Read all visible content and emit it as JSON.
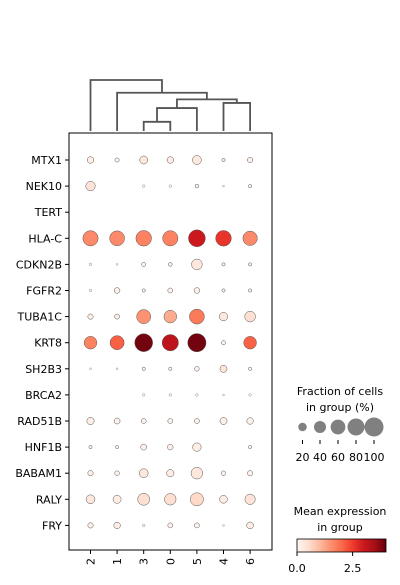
{
  "chart_data": {
    "type": "dotplot",
    "genes": [
      "MTX1",
      "NEK10",
      "TERT",
      "HLA-C",
      "CDKN2B",
      "FGFR2",
      "TUBA1C",
      "KRT8",
      "SH2B3",
      "BRCA2",
      "RAD51B",
      "HNF1B",
      "BABAM1",
      "RALY",
      "FRY"
    ],
    "groups": [
      "2",
      "1",
      "3",
      "0",
      "5",
      "4",
      "6"
    ],
    "mean_expression": [
      [
        0.2,
        0.1,
        0.3,
        0.2,
        0.3,
        0.05,
        0.1
      ],
      [
        0.4,
        0.0,
        0.05,
        0.05,
        0.05,
        0.0,
        0.05
      ],
      [
        0.0,
        0.0,
        0.0,
        0.0,
        0.0,
        0.0,
        0.0
      ],
      [
        1.6,
        1.6,
        1.7,
        1.7,
        3.0,
        2.6,
        1.6
      ],
      [
        0.05,
        0.0,
        0.05,
        0.1,
        0.3,
        0.05,
        0.05
      ],
      [
        0.05,
        0.15,
        0.05,
        0.1,
        0.15,
        0.05,
        0.05
      ],
      [
        0.2,
        0.15,
        1.5,
        1.2,
        1.8,
        0.3,
        0.5
      ],
      [
        1.7,
        2.1,
        3.9,
        3.2,
        3.9,
        0.05,
        2.1
      ],
      [
        0.05,
        0.05,
        0.05,
        0.05,
        0.1,
        0.4,
        0.05
      ],
      [
        0.0,
        0.0,
        0.05,
        0.05,
        0.05,
        0.0,
        0.05
      ],
      [
        0.15,
        0.1,
        0.1,
        0.1,
        0.1,
        0.1,
        0.1
      ],
      [
        0.05,
        0.05,
        0.1,
        0.15,
        0.2,
        0.0,
        0.05
      ],
      [
        0.15,
        0.1,
        0.3,
        0.2,
        0.3,
        0.1,
        0.1
      ],
      [
        0.3,
        0.2,
        0.5,
        0.5,
        0.6,
        0.2,
        0.4
      ],
      [
        0.15,
        0.2,
        0.05,
        0.1,
        0.05,
        0.0,
        0.2
      ]
    ],
    "fraction_pct": [
      [
        12,
        5,
        18,
        12,
        22,
        3,
        8
      ],
      [
        25,
        0,
        2,
        2,
        4,
        1,
        3
      ],
      [
        0,
        0,
        0,
        0,
        0,
        0,
        0
      ],
      [
        65,
        62,
        68,
        65,
        78,
        68,
        58
      ],
      [
        2,
        1,
        5,
        4,
        32,
        3,
        3
      ],
      [
        2,
        9,
        3,
        7,
        9,
        3,
        3
      ],
      [
        8,
        7,
        55,
        45,
        62,
        20,
        32
      ],
      [
        45,
        55,
        88,
        74,
        92,
        5,
        45
      ],
      [
        1,
        1,
        3,
        3,
        6,
        14,
        3
      ],
      [
        0,
        0,
        2,
        2,
        2,
        1,
        2
      ],
      [
        15,
        10,
        7,
        7,
        7,
        14,
        12
      ],
      [
        3,
        3,
        10,
        9,
        20,
        0,
        3
      ],
      [
        8,
        6,
        22,
        15,
        38,
        6,
        8
      ],
      [
        22,
        18,
        40,
        37,
        48,
        17,
        30
      ],
      [
        8,
        12,
        2,
        7,
        7,
        1,
        13
      ]
    ],
    "dendrogram": [
      {
        "a": "3",
        "b": "0",
        "height": 0.18
      },
      {
        "a": "3+0",
        "b": "5",
        "height": 0.45
      },
      {
        "a": "4",
        "b": "6",
        "height": 0.55
      },
      {
        "a": "3+0+5",
        "b": "4+6",
        "height": 0.62
      },
      {
        "a": "1",
        "b": "3+0+5+4+6",
        "height": 0.75
      },
      {
        "a": "2",
        "b": "1+3+0+5+4+6",
        "height": 1.0
      }
    ],
    "size_legend": {
      "title_line1": "Fraction of cells",
      "title_line2": "in group (%)",
      "values": [
        20,
        40,
        60,
        80,
        100
      ],
      "labels": [
        "20",
        "40",
        "60",
        "80",
        "100"
      ]
    },
    "color_legend": {
      "title_line1": "Mean expression",
      "title_line2": "in group",
      "vmin": 0.0,
      "vmax": 4.0,
      "ticks": [
        0.0,
        2.5
      ],
      "tick_labels": [
        "0.0",
        "2.5"
      ],
      "colormap": "Reds",
      "cmap_stops": [
        "#fff5f0",
        "#fee0d2",
        "#fcbba1",
        "#fc9272",
        "#fb6a4a",
        "#ef3b2c",
        "#cb181d",
        "#a50f15",
        "#67000d"
      ]
    }
  }
}
